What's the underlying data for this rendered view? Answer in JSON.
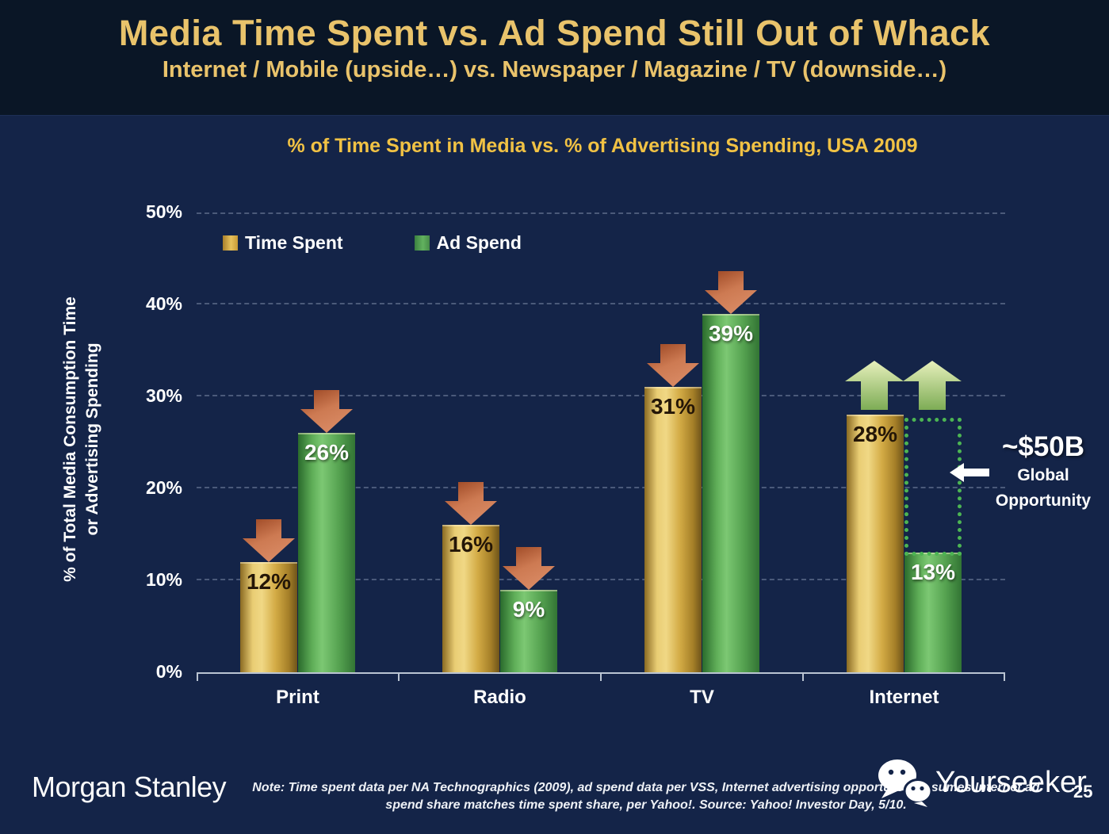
{
  "slide": {
    "title": "Media Time Spent vs. Ad Spend Still Out of Whack",
    "subtitle": "Internet / Mobile (upside…) vs. Newspaper / Magazine / TV (downside…)",
    "brand": "Morgan Stanley",
    "note_line1": "Note: Time spent data per NA Technographics (2009), ad spend data per VSS, Internet advertising opportunity assumes Internet ad",
    "note_line2": "spend share matches time spent share, per Yahoo!. Source: Yahoo! Investor Day, 5/10.",
    "watermark": "Yourseeker",
    "page_number": "25"
  },
  "chart_data": {
    "type": "bar",
    "title": "% of Time Spent in Media vs. % of Advertising Spending, USA 2009",
    "categories": [
      "Print",
      "Radio",
      "TV",
      "Internet"
    ],
    "series": [
      {
        "name": "Time Spent",
        "color": "#d8ac45",
        "values": [
          12,
          16,
          31,
          28
        ],
        "labels": [
          "12%",
          "16%",
          "31%",
          "28%"
        ]
      },
      {
        "name": "Ad Spend",
        "color": "#58a85a",
        "values": [
          26,
          9,
          39,
          13
        ],
        "labels": [
          "26%",
          "9%",
          "39%",
          "13%"
        ]
      }
    ],
    "ylabel_line1": "% of Total Media Consumption Time",
    "ylabel_line2": "or Advertising Spending",
    "ylim": [
      0,
      50
    ],
    "yticks": [
      "0%",
      "10%",
      "20%",
      "30%",
      "40%",
      "50%"
    ],
    "grid": "dashed horizontal gridlines every 10%",
    "legend_position": "top-left",
    "annotations": {
      "down_arrows_on": [
        "Print Time Spent",
        "Print Ad Spend",
        "Radio Time Spent",
        "Radio Ad Spend",
        "TV Time Spent",
        "TV Ad Spend"
      ],
      "up_arrows_on": [
        "Internet Time Spent",
        "Internet Ad Spend"
      ],
      "opportunity": {
        "value": "~$50B",
        "label_line1": "Global",
        "label_line2": "Opportunity",
        "category": "Internet",
        "range": [
          13,
          28
        ]
      }
    },
    "colors": {
      "time_spent_bar": "#d8ac45",
      "ad_spend_bar": "#58a85a",
      "down_arrow": "#c76a4a",
      "up_arrow": "#a8cc78",
      "opportunity_box": "#4cb553",
      "title_gold": "#e9c36b",
      "background": "#142448",
      "header_background": "#0a1626"
    }
  }
}
